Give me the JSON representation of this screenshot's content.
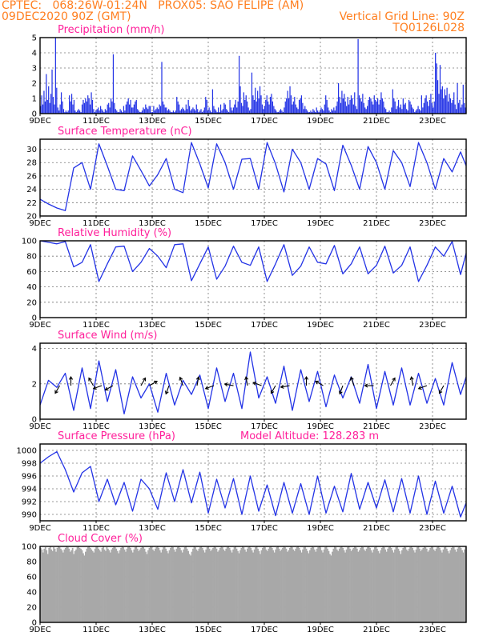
{
  "header": {
    "line1_left": "CPTEC:   068:26W-01:24N   PROX05: SAO FELIPE (AM)",
    "line2_left": "09DEC2020 90Z (GMT)",
    "line2_right": "Vertical Grid Line: 90Z",
    "line3_right": "TQ0126L028"
  },
  "colors": {
    "header": "#ff7f20",
    "title": "#ff1f9a",
    "series": "#2333e6",
    "cloud": "#a8a8a8",
    "arrow": "#000000"
  },
  "xaxis": {
    "ticks": [
      {
        "day": 9,
        "label": "9DEC"
      },
      {
        "day": 11,
        "label": "11DEC"
      },
      {
        "day": 13,
        "label": "13DEC"
      },
      {
        "day": 15,
        "label": "15DEC"
      },
      {
        "day": 17,
        "label": "17DEC"
      },
      {
        "day": 19,
        "label": "19DEC"
      },
      {
        "day": 21,
        "label": "21DEC"
      },
      {
        "day": 23,
        "label": "23DEC"
      }
    ],
    "range": [
      9,
      24.2
    ]
  },
  "chart_data": [
    {
      "type": "bar",
      "title": "Precipitation (mm/h)",
      "ylim": [
        0,
        5
      ],
      "yticks": [
        0,
        1,
        2,
        3,
        4,
        5
      ],
      "values": [
        0.5,
        1.2,
        0.6,
        1.5,
        0.8,
        2.6,
        0.9,
        1.8,
        0.7,
        1.3,
        2.9,
        1.1,
        0.6,
        5.0,
        1.7,
        0.4,
        0.2,
        0.6,
        1.4,
        0.8,
        0.3,
        0.1,
        0.2,
        0.1,
        0.2,
        1.2,
        0.8,
        1.3,
        0.6,
        0.9,
        0.2,
        0.1,
        0.2,
        0.3,
        0.2,
        0.1,
        0.6,
        0.9,
        0.7,
        1.0,
        0.8,
        1.2,
        1.0,
        0.6,
        1.4,
        0.9,
        0.3,
        0.1,
        0.2,
        0.3,
        0.4,
        0.2,
        0.5,
        0.3,
        0.2,
        0.1,
        0.3,
        0.2,
        0.6,
        0.7,
        0.4,
        1.0,
        0.8,
        3.9,
        0.7,
        0.3,
        0.2,
        0.1,
        0.1,
        0.3,
        0.2,
        0.1,
        0.5,
        0.2,
        0.6,
        0.8,
        1.0,
        0.6,
        0.9,
        0.4,
        0.4,
        0.6,
        0.8,
        0.9,
        0.3,
        0.2,
        0.1,
        0.1,
        0.2,
        0.4,
        0.3,
        0.6,
        0.4,
        0.3,
        0.5,
        0.5,
        0.1,
        0.1,
        0.5,
        0.2,
        0.3,
        0.4,
        0.3,
        0.6,
        0.5,
        3.4,
        0.8,
        0.6,
        0.4,
        0.4,
        0.2,
        0.3,
        0.2,
        0.1,
        0.1,
        0.2,
        0.1,
        0.2,
        1.1,
        0.8,
        0.6,
        0.2,
        0.3,
        0.4,
        0.3,
        0.2,
        0.6,
        0.3,
        0.9,
        0.5,
        0.2,
        0.3,
        0.4,
        0.3,
        0.2,
        0.6,
        0.3,
        0.1,
        0.2,
        0.3,
        0.1,
        0.2,
        0.4,
        1.1,
        0.9,
        0.2,
        0.4,
        0.2,
        0.1,
        1.6,
        0.5,
        0.3,
        0.2,
        0.1,
        0.4,
        0.1,
        0.6,
        0.2,
        0.3,
        0.7,
        0.6,
        0.3,
        0.2,
        0.1,
        0.9,
        0.4,
        0.2,
        0.4,
        0.6,
        0.9,
        0.4,
        0.8,
        3.8,
        1.8,
        0.7,
        0.5,
        1.4,
        0.9,
        1.2,
        0.8,
        0.4,
        0.2,
        0.3,
        2.7,
        1.2,
        0.9,
        1.7,
        0.8,
        1.5,
        1.0,
        1.8,
        1.2,
        0.6,
        0.3,
        0.5,
        0.9,
        1.2,
        0.8,
        0.6,
        1.1,
        1.3,
        0.8,
        0.5,
        0.3,
        0.2,
        0.1,
        0.1,
        0.2,
        0.3,
        0.2,
        0.1,
        0.4,
        0.8,
        1.0,
        1.5,
        1.0,
        1.8,
        1.2,
        0.6,
        0.8,
        1.1,
        0.6,
        0.4,
        0.3,
        0.9,
        1.0,
        1.2,
        0.7,
        0.3,
        0.5,
        0.3,
        0.2,
        0.1,
        0.1,
        0.2,
        0.1,
        0.3,
        0.2,
        0.1,
        0.4,
        0.2,
        0.1,
        0.2,
        0.4,
        0.3,
        0.2,
        0.6,
        1.2,
        0.9,
        0.4,
        0.2,
        0.1,
        0.3,
        0.2,
        0.4,
        0.2,
        0.5,
        0.8,
        2.0,
        1.1,
        0.7,
        1.5,
        1.0,
        1.3,
        0.8,
        0.5,
        1.1,
        0.6,
        0.9,
        1.2,
        1.0,
        0.6,
        1.4,
        0.5,
        0.3,
        4.9,
        1.2,
        1.0,
        0.8,
        1.3,
        0.7,
        0.4,
        0.3,
        0.5,
        0.9,
        1.1,
        1.0,
        0.8,
        0.6,
        1.2,
        0.9,
        0.8,
        1.0,
        0.6,
        0.9,
        1.4,
        1.0,
        0.8,
        0.4,
        0.3,
        0.1,
        0.1,
        0.2,
        0.1,
        0.4,
        1.6,
        1.0,
        0.8,
        0.3,
        0.5,
        0.9,
        0.4,
        0.6,
        0.3,
        1.0,
        0.6,
        0.7,
        0.3,
        0.2,
        0.9,
        0.8,
        0.6,
        0.4,
        0.3,
        0.1,
        0.2,
        0.3,
        0.5,
        0.3,
        0.2,
        1.2,
        0.4,
        0.7,
        1.0,
        1.2,
        0.8,
        0.5,
        0.9,
        1.3,
        0.7,
        0.4,
        0.8,
        4.0,
        3.3,
        2.2,
        1.3,
        3.2,
        1.6,
        1.8,
        1.0,
        1.6,
        1.2,
        1.7,
        0.8,
        1.3,
        1.0,
        0.7,
        0.9,
        1.4,
        0.6,
        0.3,
        2.0,
        0.7,
        0.9,
        0.4,
        0.6,
        1.9,
        0.7,
        0.4
      ]
    },
    {
      "type": "line",
      "title": "Surface Temperature (nC)",
      "ylim": [
        20,
        31.5
      ],
      "yticks": [
        20,
        22,
        24,
        26,
        28,
        30
      ],
      "x": [
        9.0,
        9.3,
        9.6,
        9.9,
        10.2,
        10.5,
        10.8,
        11.1,
        11.4,
        11.7,
        12.0,
        12.3,
        12.6,
        12.9,
        13.2,
        13.5,
        13.8,
        14.1,
        14.4,
        14.7,
        15.0,
        15.3,
        15.6,
        15.9,
        16.2,
        16.5,
        16.8,
        17.1,
        17.4,
        17.7,
        18.0,
        18.3,
        18.6,
        18.9,
        19.2,
        19.5,
        19.8,
        20.1,
        20.4,
        20.7,
        21.0,
        21.3,
        21.6,
        21.9,
        22.2,
        22.5,
        22.8,
        23.1,
        23.4,
        23.7,
        24.0,
        24.2
      ],
      "values": [
        22.5,
        21.8,
        21.2,
        20.8,
        27.2,
        28.0,
        24.0,
        30.8,
        27.5,
        24.0,
        23.8,
        29.0,
        26.8,
        24.5,
        26.2,
        28.6,
        24.0,
        23.5,
        31.0,
        27.8,
        24.2,
        30.8,
        28.0,
        24.0,
        28.5,
        28.6,
        24.0,
        31.0,
        27.8,
        23.6,
        30.0,
        28.0,
        24.0,
        28.6,
        27.8,
        23.8,
        30.6,
        27.6,
        24.0,
        30.4,
        28.0,
        24.0,
        29.8,
        28.0,
        24.4,
        31.0,
        28.0,
        24.0,
        28.6,
        26.6,
        29.6,
        27.5
      ]
    },
    {
      "type": "line",
      "title": "Relative Humidity (%)",
      "ylim": [
        0,
        100
      ],
      "yticks": [
        0,
        20,
        40,
        60,
        80,
        100
      ],
      "x": [
        9.0,
        9.3,
        9.6,
        9.9,
        10.2,
        10.5,
        10.8,
        11.1,
        11.4,
        11.7,
        12.0,
        12.3,
        12.6,
        12.9,
        13.2,
        13.5,
        13.8,
        14.1,
        14.4,
        14.7,
        15.0,
        15.3,
        15.6,
        15.9,
        16.2,
        16.5,
        16.8,
        17.1,
        17.4,
        17.7,
        18.0,
        18.3,
        18.6,
        18.9,
        19.2,
        19.5,
        19.8,
        20.1,
        20.4,
        20.7,
        21.0,
        21.3,
        21.6,
        21.9,
        22.2,
        22.5,
        22.8,
        23.1,
        23.4,
        23.7,
        24.0,
        24.2
      ],
      "values": [
        100,
        98,
        96,
        99,
        66,
        72,
        95,
        47,
        70,
        92,
        93,
        60,
        72,
        90,
        80,
        65,
        95,
        96,
        48,
        70,
        92,
        50,
        67,
        93,
        72,
        68,
        92,
        47,
        70,
        95,
        55,
        67,
        92,
        72,
        70,
        94,
        57,
        70,
        92,
        57,
        68,
        93,
        58,
        68,
        92,
        47,
        68,
        92,
        80,
        99,
        56,
        84
      ]
    },
    {
      "type": "line",
      "title": "Surface Wind (m/s)",
      "ylim": [
        0,
        4.3
      ],
      "yticks": [
        0,
        2,
        4
      ],
      "x": [
        9.0,
        9.3,
        9.6,
        9.9,
        10.2,
        10.5,
        10.8,
        11.1,
        11.4,
        11.7,
        12.0,
        12.3,
        12.6,
        12.9,
        13.2,
        13.5,
        13.8,
        14.1,
        14.4,
        14.7,
        15.0,
        15.3,
        15.6,
        15.9,
        16.2,
        16.5,
        16.8,
        17.1,
        17.4,
        17.7,
        18.0,
        18.3,
        18.6,
        18.9,
        19.2,
        19.5,
        19.8,
        20.1,
        20.4,
        20.7,
        21.0,
        21.3,
        21.6,
        21.9,
        22.2,
        22.5,
        22.8,
        23.1,
        23.4,
        23.7,
        24.0,
        24.2
      ],
      "values": [
        0.8,
        2.2,
        1.8,
        2.6,
        0.5,
        2.9,
        0.6,
        3.3,
        1.0,
        2.8,
        0.3,
        2.4,
        1.2,
        2.0,
        0.4,
        2.6,
        0.8,
        2.2,
        1.4,
        2.5,
        0.6,
        2.9,
        1.0,
        2.6,
        0.6,
        3.8,
        1.2,
        2.4,
        0.9,
        3.0,
        0.5,
        2.8,
        1.0,
        2.7,
        0.7,
        2.5,
        1.2,
        2.4,
        0.9,
        3.1,
        0.6,
        2.7,
        0.8,
        2.9,
        0.8,
        2.6,
        0.9,
        2.3,
        0.8,
        3.2,
        1.4,
        2.4
      ],
      "vectors": [
        {
          "day": 9.7,
          "angle": 240
        },
        {
          "day": 10.1,
          "angle": 90
        },
        {
          "day": 10.9,
          "angle": 120
        },
        {
          "day": 11.2,
          "angle": 200
        },
        {
          "day": 11.6,
          "angle": 210
        },
        {
          "day": 12.6,
          "angle": 60
        },
        {
          "day": 12.9,
          "angle": 30
        },
        {
          "day": 13.6,
          "angle": 250
        },
        {
          "day": 14.1,
          "angle": 110
        },
        {
          "day": 14.6,
          "angle": 80
        },
        {
          "day": 15.2,
          "angle": 200
        },
        {
          "day": 15.9,
          "angle": 170
        },
        {
          "day": 16.4,
          "angle": 100
        },
        {
          "day": 16.9,
          "angle": 160
        },
        {
          "day": 17.4,
          "angle": 240
        },
        {
          "day": 17.9,
          "angle": 190
        },
        {
          "day": 18.5,
          "angle": 90
        },
        {
          "day": 19.1,
          "angle": 150
        },
        {
          "day": 19.8,
          "angle": 250
        },
        {
          "day": 20.2,
          "angle": 110
        },
        {
          "day": 20.9,
          "angle": 180
        },
        {
          "day": 21.5,
          "angle": 60
        },
        {
          "day": 22.3,
          "angle": 100
        },
        {
          "day": 22.8,
          "angle": 200
        },
        {
          "day": 23.4,
          "angle": 240
        }
      ]
    },
    {
      "type": "line",
      "title": "Surface Pressure (hPa)",
      "subtitle": "Model Altitude: 128.283 m",
      "ylim": [
        989,
        1001
      ],
      "yticks": [
        990,
        992,
        994,
        996,
        998,
        1000
      ],
      "x": [
        9.0,
        9.3,
        9.6,
        9.9,
        10.2,
        10.5,
        10.8,
        11.1,
        11.4,
        11.7,
        12.0,
        12.3,
        12.6,
        12.9,
        13.2,
        13.5,
        13.8,
        14.1,
        14.4,
        14.7,
        15.0,
        15.3,
        15.6,
        15.9,
        16.2,
        16.5,
        16.8,
        17.1,
        17.4,
        17.7,
        18.0,
        18.3,
        18.6,
        18.9,
        19.2,
        19.5,
        19.8,
        20.1,
        20.4,
        20.7,
        21.0,
        21.3,
        21.6,
        21.9,
        22.2,
        22.5,
        22.8,
        23.1,
        23.4,
        23.7,
        24.0,
        24.2
      ],
      "values": [
        998.0,
        999.0,
        999.8,
        997.0,
        993.5,
        996.5,
        997.5,
        992.0,
        995.5,
        991.5,
        995.0,
        990.5,
        995.5,
        994.0,
        990.8,
        996.5,
        992.0,
        997.0,
        991.8,
        996.6,
        990.2,
        995.5,
        991.0,
        995.6,
        990.0,
        996.0,
        990.5,
        994.6,
        989.8,
        995.0,
        990.2,
        994.8,
        990.0,
        996.0,
        990.2,
        994.4,
        990.4,
        996.4,
        990.8,
        995.0,
        991.0,
        995.4,
        990.4,
        995.6,
        990.2,
        996.0,
        990.0,
        995.2,
        990.2,
        994.4,
        989.6,
        991.8
      ]
    },
    {
      "type": "bar",
      "title": "Cloud Cover (%)",
      "ylim": [
        0,
        100
      ],
      "yticks": [
        0,
        20,
        40,
        60,
        80,
        100
      ],
      "values": [
        98,
        96,
        92,
        97,
        99,
        95,
        90,
        98,
        100,
        96,
        94,
        99,
        97,
        93,
        98,
        100,
        99,
        97,
        95,
        92,
        96,
        98,
        100,
        99,
        97,
        93,
        95,
        98,
        90,
        94,
        96,
        99,
        100,
        98,
        97,
        95,
        91,
        88,
        93,
        97,
        99,
        100,
        98,
        96,
        94,
        92,
        97,
        99,
        100,
        97,
        95,
        93,
        98,
        100,
        96,
        94,
        99,
        97,
        95,
        92,
        96,
        98,
        100,
        99,
        97,
        94,
        91,
        95,
        98,
        100,
        99,
        96,
        93,
        97,
        99,
        100,
        98,
        95,
        92,
        96,
        99,
        100,
        97,
        94,
        96,
        98,
        100,
        99,
        97,
        93,
        90,
        95,
        98,
        100,
        99,
        96,
        94,
        97,
        99,
        100,
        98,
        95,
        92,
        96,
        99,
        100,
        97,
        94,
        91,
        95,
        98,
        100,
        99,
        96,
        93,
        97,
        99,
        100,
        98,
        95,
        92,
        96,
        99,
        100,
        97,
        94,
        90,
        88,
        93,
        97,
        100,
        99,
        96,
        94,
        97,
        99,
        100,
        98,
        95,
        92,
        96,
        99,
        100,
        97,
        94,
        96,
        98,
        100,
        99,
        97,
        93,
        95,
        98,
        100,
        99,
        96,
        94,
        97,
        99,
        100,
        98,
        95,
        92,
        96,
        99,
        100,
        97,
        94,
        91,
        95,
        98,
        100,
        99,
        96,
        93,
        97,
        99,
        100,
        98,
        95,
        92,
        96,
        99,
        100,
        97,
        94,
        90,
        95,
        98,
        100,
        99,
        96,
        94,
        97,
        99,
        100,
        98,
        95,
        92,
        96,
        99,
        100,
        97,
        94,
        96,
        98,
        100,
        99,
        97,
        93,
        95,
        98,
        100,
        99,
        96,
        94,
        97,
        99,
        100,
        98,
        95,
        92,
        96,
        99,
        100,
        97,
        94,
        91,
        95,
        98,
        100,
        99,
        96,
        93,
        97,
        99,
        100,
        98,
        95,
        92,
        96,
        99,
        100,
        97,
        94,
        90,
        88,
        93,
        97,
        100,
        99,
        96,
        94,
        97,
        99,
        100,
        98,
        95,
        92,
        96,
        99,
        100,
        97,
        94,
        96,
        98,
        100,
        99,
        97,
        93,
        95,
        98,
        100,
        99,
        96,
        94,
        97,
        99,
        100,
        98,
        95,
        92,
        96,
        99,
        100,
        97,
        94,
        91,
        95,
        98,
        100,
        99,
        96,
        93,
        97,
        99,
        100,
        98,
        95,
        92,
        96,
        99,
        100,
        97,
        94,
        90,
        95,
        98,
        100,
        99,
        96,
        94,
        97,
        99,
        100,
        98,
        95,
        92,
        96,
        99,
        100,
        97,
        94,
        96,
        98,
        100,
        99,
        97,
        93,
        95,
        98,
        100,
        99,
        96,
        94,
        97,
        99,
        100,
        98,
        95,
        92,
        96,
        99,
        100,
        97,
        94,
        91,
        95,
        98,
        100,
        99,
        96,
        93,
        97,
        99,
        100,
        98,
        95,
        92,
        96,
        99
      ]
    }
  ]
}
